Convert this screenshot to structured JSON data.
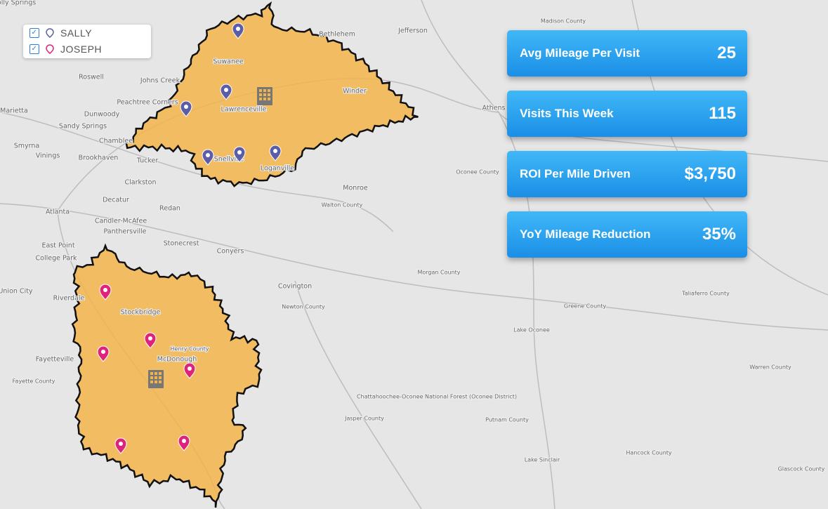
{
  "legend": {
    "items": [
      {
        "label": "SALLY"
      },
      {
        "label": "JOSEPH"
      }
    ]
  },
  "stats": [
    {
      "label": "Avg Mileage Per Visit",
      "value": "25"
    },
    {
      "label": "Visits This Week",
      "value": "115"
    },
    {
      "label": "ROI Per Mile Driven",
      "value": "$3,750"
    },
    {
      "label": "YoY Mileage Reduction",
      "value": "35%"
    }
  ],
  "map": {
    "labels": [
      "Holly Springs",
      "Roswell",
      "Johns Creek",
      "Marietta",
      "Dunwoody",
      "Peachtree Corners",
      "Sandy Springs",
      "Smyrna",
      "Vinings",
      "Chamblee",
      "Brookhaven",
      "Tucker",
      "Clarkston",
      "Decatur",
      "Atlanta",
      "Candler-McAfee",
      "Panthersville",
      "Redan",
      "East Point",
      "College Park",
      "Stonecrest",
      "Conyers",
      "Covington",
      "Union City",
      "Riverdale",
      "Stockbridge",
      "Fayetteville",
      "McDonough",
      "Henry County",
      "Fayette County",
      "Lawrenceville",
      "Snellville",
      "Loganville",
      "Suwanee",
      "Winder",
      "Bethlehem",
      "Jefferson",
      "Athens",
      "Monroe",
      "Walton County",
      "Oconee County",
      "Newton County",
      "Morgan County",
      "Greene County",
      "Madison County",
      "Taliaferro County",
      "Lake Oconee",
      "Warren County",
      "Putnam County",
      "Hancock County",
      "Glascock County",
      "Lake Sinclair",
      "Jasper County",
      "Chattahoochee-Oconee National Forest (Oconee District)"
    ]
  }
}
